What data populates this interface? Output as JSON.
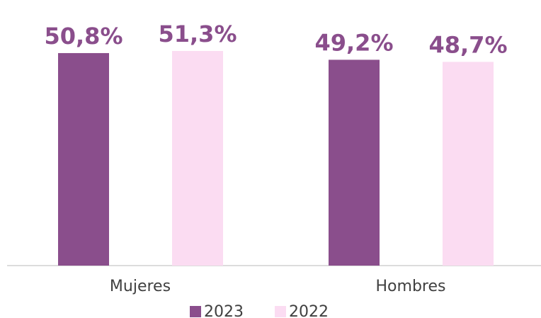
{
  "chart_data": {
    "type": "bar",
    "categories": [
      "Mujeres",
      "Hombres"
    ],
    "series": [
      {
        "name": "2023",
        "color": "#8a4e8c",
        "values": [
          50.8,
          49.2
        ],
        "value_labels": [
          "50,8%",
          "49,2%"
        ]
      },
      {
        "name": "2022",
        "color": "#fbdcf2",
        "values": [
          51.3,
          48.7
        ],
        "value_labels": [
          "51,3%",
          "48,7%"
        ]
      }
    ],
    "legend": "bottom"
  }
}
